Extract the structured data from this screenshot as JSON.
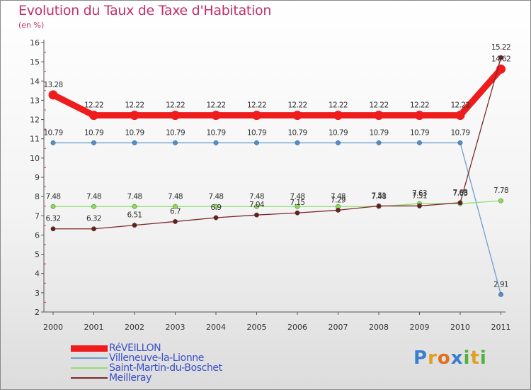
{
  "chart_data": {
    "type": "line",
    "title": "Evolution du Taux de Taxe d'Habitation",
    "subtitle": "(en %)",
    "x": [
      "2000",
      "2001",
      "2002",
      "2003",
      "2004",
      "2005",
      "2006",
      "2007",
      "2008",
      "2009",
      "2010",
      "2011"
    ],
    "ylim": [
      2,
      16
    ],
    "yticks": [
      2,
      3,
      4,
      5,
      6,
      7,
      8,
      9,
      10,
      11,
      12,
      13,
      14,
      15,
      16
    ],
    "grid": false,
    "legend_position": "bottom-left",
    "series": [
      {
        "name": "RéVEILLON",
        "color": "#ee1c1c",
        "values": [
          13.28,
          12.22,
          12.22,
          12.22,
          12.22,
          12.22,
          12.22,
          12.22,
          12.22,
          12.22,
          12.22,
          14.62
        ],
        "labels": [
          "13.28",
          "12.22",
          "12.22",
          "12.22",
          "12.22",
          "12.22",
          "12.22",
          "12.22",
          "12.22",
          "12.22",
          "12.22",
          "14.62"
        ]
      },
      {
        "name": "Villeneuve-la-Lionne",
        "color": "#6a9fd0",
        "values": [
          10.79,
          10.79,
          10.79,
          10.79,
          10.79,
          10.79,
          10.79,
          10.79,
          10.79,
          10.79,
          10.79,
          2.91
        ],
        "labels": [
          "10.79",
          "10.79",
          "10.79",
          "10.79",
          "10.79",
          "10.79",
          "10.79",
          "10.79",
          "10.79",
          "10.79",
          "10.79",
          "2.91"
        ]
      },
      {
        "name": "Saint-Martin-du-Boschet",
        "color": "#90e070",
        "values": [
          7.48,
          7.48,
          7.48,
          7.48,
          7.48,
          7.48,
          7.48,
          7.48,
          7.48,
          7.63,
          7.63,
          7.78
        ],
        "labels": [
          "7.48",
          "7.48",
          "7.48",
          "7.48",
          "7.48",
          "7.48",
          "7.48",
          "7.48",
          "7.48",
          "7.63",
          "7.63",
          "7.78"
        ]
      },
      {
        "name": "Meilleray",
        "color": "#7a2a2a",
        "values": [
          6.32,
          6.32,
          6.51,
          6.7,
          6.9,
          7.04,
          7.15,
          7.29,
          7.51,
          7.51,
          7.68,
          15.22
        ],
        "labels": [
          "6.32",
          "6.32",
          "6.51",
          "6.7",
          "6.9",
          "7.04",
          "7.15",
          "7.29",
          "7.51",
          "7.51",
          "7.68",
          "15.22"
        ]
      }
    ]
  },
  "logo": {
    "letters": [
      "P",
      "r",
      "o",
      "x",
      "i",
      "t",
      "i"
    ],
    "colors": [
      "#3a7fd0",
      "#e0a020",
      "#e07020",
      "#3a7fd0",
      "#50b040",
      "#e0a020",
      "#50b040"
    ]
  }
}
